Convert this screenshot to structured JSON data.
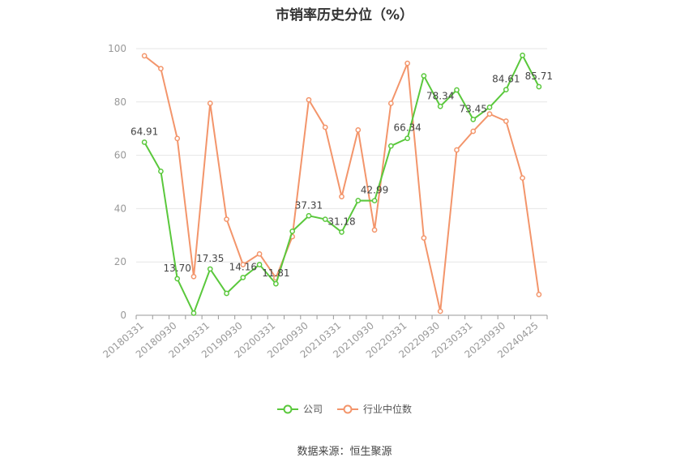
{
  "chart_data": {
    "type": "line",
    "title": "市销率历史分位（%）",
    "ylim": [
      0,
      100
    ],
    "yticks": [
      0,
      20,
      40,
      60,
      80,
      100
    ],
    "grid": true,
    "legend_position": "bottom",
    "x": [
      "20180331",
      "20180630",
      "20180930",
      "20181231",
      "20190331",
      "20190630",
      "20190930",
      "20191231",
      "20200331",
      "20200630",
      "20200930",
      "20201231",
      "20210331",
      "20210630",
      "20210930",
      "20211231",
      "20220331",
      "20220630",
      "20220930",
      "20221231",
      "20230331",
      "20230630",
      "20230930",
      "20231231",
      "20240425"
    ],
    "xtick_labels": [
      "20180331",
      "20180930",
      "20190331",
      "20190930",
      "20200331",
      "20200930",
      "20210331",
      "20210930",
      "20220331",
      "20220930",
      "20230331",
      "20230930",
      "20240425"
    ],
    "series": [
      {
        "name": "公司",
        "color": "#5ac83c",
        "values": [
          64.91,
          54.0,
          13.7,
          0.8,
          17.35,
          8.2,
          14.16,
          19.0,
          11.81,
          31.5,
          37.31,
          36.0,
          31.18,
          43.0,
          42.99,
          63.5,
          66.34,
          89.8,
          78.34,
          84.5,
          73.45,
          78.0,
          84.61,
          97.5,
          85.71
        ],
        "labels": {
          "0": "64.91",
          "2": "13.70",
          "4": "17.35",
          "6": "14.16",
          "8": "11.81",
          "10": "37.31",
          "12": "31.18",
          "14": "42.99",
          "16": "66.34",
          "18": "78.34",
          "20": "73.45",
          "22": "84.61",
          "24": "85.71"
        }
      },
      {
        "name": "行业中位数",
        "color": "#f3956b",
        "values": [
          97.3,
          92.5,
          66.3,
          14.5,
          79.5,
          36.0,
          19.0,
          23.0,
          14.0,
          29.5,
          80.8,
          70.5,
          44.5,
          69.5,
          32.0,
          79.5,
          94.5,
          29.0,
          1.5,
          62.0,
          69.0,
          75.5,
          72.8,
          51.5,
          7.8
        ]
      }
    ]
  },
  "source_text": "数据来源：恒生聚源"
}
